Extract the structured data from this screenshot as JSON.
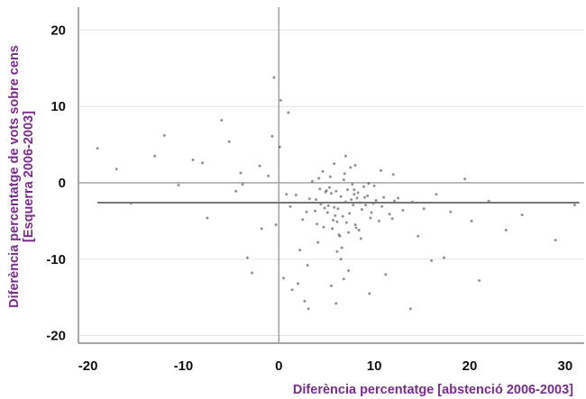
{
  "chart_data": {
    "type": "scatter",
    "xlabel": "Diferència percentatge [abstenció 2006-2003]",
    "ylabel_lines": [
      "Diferència percentatge de vots sobre cens",
      "[Esquerra 2006-2003]"
    ],
    "xlim": [
      -21,
      32
    ],
    "ylim": [
      -21,
      23
    ],
    "xticks": [
      -20,
      -10,
      0,
      10,
      20,
      30
    ],
    "yticks": [
      -20,
      -10,
      0,
      10,
      20
    ],
    "grid": true,
    "point_color": "#3a3a3a",
    "label_color": "#7b2d8e",
    "reference_lines": {
      "x": 0,
      "y": 0
    },
    "fit_line": {
      "x": [
        -19,
        31.5
      ],
      "y": [
        -2.6,
        -2.6
      ]
    },
    "series": [
      {
        "x": [
          7.0,
          6.5,
          5.8,
          8.2,
          4.9,
          7.4,
          9.1,
          5.3,
          6.1,
          7.9,
          3.8,
          10.2,
          6.8,
          5.6,
          8.7,
          4.4,
          7.2,
          9.6,
          6.0,
          5.1,
          8.0,
          11.0,
          3.2,
          6.4,
          7.7,
          5.9,
          8.5,
          4.7,
          10.8,
          6.9,
          2.5,
          12.1,
          7.3,
          5.4,
          9.3,
          6.2,
          8.9,
          4.1,
          7.6,
          5.7,
          13.0,
          1.8,
          6.6,
          9.9,
          4.6,
          7.1,
          8.3,
          5.2,
          11.6,
          3.5,
          6.3,
          7.8,
          9.4,
          4.8,
          8.1,
          5.5,
          12.5,
          2.9,
          7.5,
          6.7,
          10.5,
          3.9,
          8.6,
          5.0,
          9.7,
          6.1,
          14.0,
          1.2,
          7.0,
          8.4,
          4.3,
          11.9,
          6.5,
          9.0,
          5.8,
          15.2,
          0.8,
          7.3,
          10.0,
          4.0,
          16.5,
          18.0,
          20.2,
          22.0,
          25.5,
          29.0,
          31.0,
          17.3,
          19.5,
          23.8,
          -2.0,
          -4.5,
          -6.0,
          -8.0,
          -10.5,
          -13.0,
          -15.5,
          -19.0,
          -3.3,
          -5.2,
          -7.5,
          -1.1,
          0.5,
          -0.7,
          1.4,
          2.2,
          -2.8,
          3.1,
          -4.0,
          -12.0,
          -17.0,
          -9.0,
          -0.3,
          0.2,
          1.0,
          2.7,
          13.8,
          14.6,
          16.0,
          21.0,
          0.1,
          -0.5,
          4.2,
          8.0,
          12.0,
          2.0,
          -1.8,
          -3.8,
          9.5,
          6.0,
          11.2,
          5.5,
          7.9,
          3.0,
          10.7,
          6.8
        ],
        "y": [
          -2.5,
          -1.8,
          -3.2,
          -2.0,
          -1.2,
          -4.0,
          -2.9,
          -0.6,
          -5.1,
          -1.5,
          -3.7,
          -2.3,
          0.4,
          -6.0,
          -3.5,
          -2.8,
          -0.9,
          -4.6,
          -1.1,
          -3.9,
          -5.5,
          -1.9,
          -2.1,
          -7.0,
          -0.2,
          -4.3,
          -2.6,
          -5.8,
          -3.1,
          1.2,
          -4.8,
          -2.4,
          -6.5,
          0.8,
          -1.7,
          -3.4,
          -0.5,
          -7.8,
          -2.2,
          -4.9,
          -3.6,
          -1.6,
          -8.5,
          -2.7,
          1.5,
          -5.2,
          -1.3,
          -3.0,
          -4.1,
          0.2,
          -6.8,
          -2.9,
          -0.1,
          -3.3,
          -5.9,
          -1.4,
          -2.0,
          -3.8,
          2.0,
          -4.4,
          -5.0,
          -2.2,
          -7.3,
          -1.0,
          -3.9,
          -9.0,
          -2.5,
          -3.1,
          3.5,
          -6.2,
          -0.8,
          -4.7,
          -10.0,
          -1.9,
          2.5,
          -3.4,
          -1.5,
          -11.5,
          -0.4,
          -5.4,
          -1.5,
          -3.8,
          -5.0,
          -2.4,
          -4.2,
          -7.5,
          -2.9,
          -9.8,
          0.5,
          -6.2,
          2.2,
          -1.1,
          8.2,
          2.6,
          -0.3,
          3.5,
          -2.7,
          4.5,
          -9.8,
          5.4,
          -4.6,
          0.9,
          -12.5,
          6.1,
          -14.0,
          -8.8,
          -11.8,
          -16.5,
          1.3,
          6.2,
          1.8,
          3.0,
          -5.5,
          10.8,
          9.2,
          -15.5,
          -16.5,
          -7.0,
          -10.2,
          -12.8,
          4.7,
          13.8,
          0.6,
          2.3,
          1.1,
          -13.2,
          -6.0,
          -0.2,
          -14.5,
          -15.8,
          -12.0,
          -13.5,
          -0.9,
          -10.8,
          1.6,
          -12.6
        ]
      }
    ]
  }
}
